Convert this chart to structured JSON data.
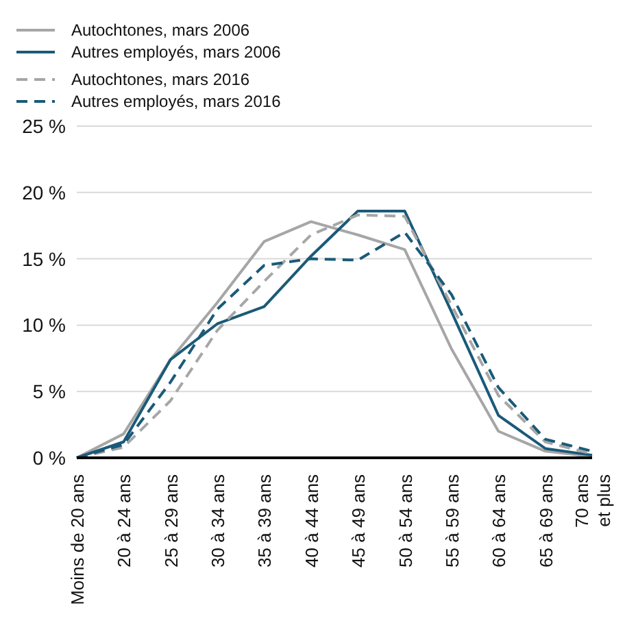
{
  "chart_data": {
    "type": "line",
    "categories": [
      "Moins de 20 ans",
      "20 à 24 ans",
      "25 à 29 ans",
      "30 à 34 ans",
      "35 à 39 ans",
      "40 à 44 ans",
      "45 à 49 ans",
      "50 à 54 ans",
      "55 à 59 ans",
      "60 à 64 ans",
      "65 à 69 ans",
      "70 ans\net plus"
    ],
    "series": [
      {
        "name": "Autochtones, mars 2006",
        "color": "#a6a6a6",
        "line_style": "solid",
        "values": [
          0,
          1.8,
          7.4,
          11.7,
          16.3,
          17.8,
          16.8,
          15.7,
          8.2,
          2.0,
          0.5,
          0.1
        ]
      },
      {
        "name": "Autres employés, mars 2006",
        "color": "#1a5a78",
        "line_style": "solid",
        "values": [
          0,
          1.2,
          7.4,
          10.1,
          11.4,
          15.2,
          18.6,
          18.6,
          11.0,
          3.2,
          0.7,
          0.2
        ]
      },
      {
        "name": "Autochtones, mars 2016",
        "color": "#a6a6a6",
        "line_style": "dashed",
        "values": [
          0,
          0.8,
          4.3,
          9.6,
          13.3,
          16.8,
          18.3,
          18.2,
          11.5,
          4.7,
          1.2,
          0.3
        ]
      },
      {
        "name": "Autres employés, mars 2016",
        "color": "#1a5a78",
        "line_style": "dashed",
        "values": [
          0,
          1.0,
          5.7,
          11.2,
          14.5,
          15.0,
          14.9,
          17.0,
          12.3,
          5.3,
          1.4,
          0.5
        ]
      }
    ],
    "ylim": [
      0,
      25
    ],
    "yticks": [
      {
        "value": 0,
        "label": "0 %"
      },
      {
        "value": 5,
        "label": "5 %"
      },
      {
        "value": 10,
        "label": "10 %"
      },
      {
        "value": 15,
        "label": "15 %"
      },
      {
        "value": 20,
        "label": "20 %"
      },
      {
        "value": 25,
        "label": "25 %"
      }
    ],
    "grid": "y",
    "legend": "top left",
    "marker": "none"
  }
}
